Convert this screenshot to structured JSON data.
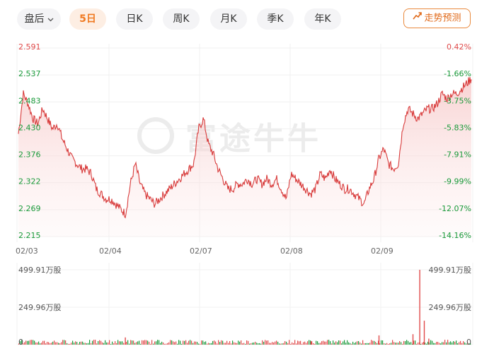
{
  "tabs": [
    {
      "label": "盘后",
      "active": false,
      "dropdown": true
    },
    {
      "label": "5日",
      "active": true
    },
    {
      "label": "日K",
      "active": false
    },
    {
      "label": "周K",
      "active": false
    },
    {
      "label": "月K",
      "active": false
    },
    {
      "label": "季K",
      "active": false
    },
    {
      "label": "年K",
      "active": false
    }
  ],
  "predict_button": "走势预测",
  "watermark": "富途牛牛",
  "colors": {
    "up": "#e04a4a",
    "down": "#1a9a3a",
    "accent": "#f07a22"
  },
  "chart_data": {
    "type": "line",
    "price_axis_left": [
      "2.591",
      "2.537",
      "2.483",
      "2.430",
      "2.376",
      "2.322",
      "2.269",
      "2.215"
    ],
    "percent_axis_right": [
      "0.42%",
      "-1.66%",
      "-3.75%",
      "-5.83%",
      "-7.91%",
      "-9.99%",
      "-12.07%",
      "-14.16%"
    ],
    "x_labels": [
      "02/03",
      "02/04",
      "02/07",
      "02/08",
      "02/09"
    ],
    "ylim": [
      2.215,
      2.591
    ],
    "volume_labels_left": [
      "499.91万股",
      "249.96万股",
      "0"
    ],
    "volume_labels_right": [
      "499.91万股",
      "249.96万股",
      "0"
    ],
    "volume_max": 499.91,
    "series": [
      {
        "values": [
          2.42,
          2.5,
          2.48,
          2.45,
          2.44,
          2.47,
          2.45,
          2.43,
          2.44,
          2.41,
          2.39,
          2.37,
          2.36,
          2.35,
          2.35,
          2.34,
          2.31,
          2.3,
          2.29,
          2.29,
          2.28,
          2.27,
          2.26,
          2.32,
          2.36,
          2.32,
          2.3,
          2.29,
          2.28,
          2.29,
          2.3,
          2.31,
          2.32,
          2.33,
          2.34,
          2.35,
          2.36,
          2.43,
          2.45,
          2.4,
          2.38,
          2.35,
          2.33,
          2.31,
          2.31,
          2.32,
          2.32,
          2.33,
          2.32,
          2.33,
          2.32,
          2.33,
          2.32,
          2.33,
          2.31,
          2.29,
          2.34,
          2.33,
          2.32,
          2.31,
          2.3,
          2.31,
          2.34,
          2.33,
          2.35,
          2.33,
          2.32,
          2.31,
          2.31,
          2.3,
          2.29,
          2.28,
          2.31,
          2.33,
          2.37,
          2.39,
          2.36,
          2.35,
          2.36,
          2.44,
          2.47,
          2.46,
          2.45,
          2.46,
          2.47,
          2.47,
          2.48,
          2.5,
          2.49,
          2.5,
          2.5,
          2.51,
          2.52,
          2.53
        ]
      }
    ],
    "volume_spikes": [
      {
        "pos": 0.235,
        "value": 48
      },
      {
        "pos": 0.645,
        "value": 22
      },
      {
        "pos": 0.795,
        "value": 62
      },
      {
        "pos": 0.87,
        "value": 70
      },
      {
        "pos": 0.885,
        "value": 499.91
      },
      {
        "pos": 0.895,
        "value": 160
      },
      {
        "pos": 0.905,
        "value": 40
      }
    ]
  }
}
